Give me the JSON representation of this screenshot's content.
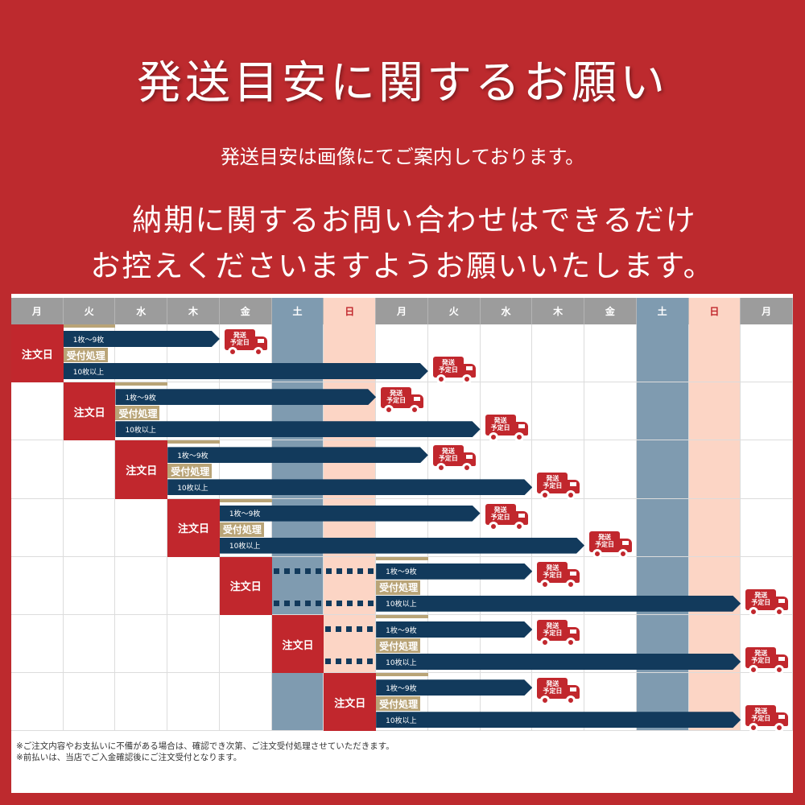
{
  "title": "発送目安に関するお願い",
  "subtitle": "発送目安は画像にてご案内しております。",
  "request_line1": "納期に関するお問い合わせはできるだけ",
  "request_line2": "お控えくださいますようお願いいたします。",
  "schedule": {
    "days": [
      "月",
      "火",
      "水",
      "木",
      "金",
      "土",
      "日",
      "月",
      "火",
      "水",
      "木",
      "金",
      "土",
      "日",
      "月"
    ],
    "weekend_colors": {
      "土": "#7f9bb0",
      "日": "#fcd5c5"
    },
    "colors": {
      "order": "#c1272d",
      "bar": "#123a5c",
      "processing": "#b9a477",
      "header": "#9c9c9c",
      "background": "#bd2a2e"
    },
    "order_label": "注文日",
    "processing_label": "受付処理",
    "small_label": "1枚～9枚",
    "large_label": "10枚以上",
    "truck_label": "発送\n予定日",
    "rows": [
      {
        "order_day": "月",
        "processing_start": "火",
        "ship_small": "金",
        "ship_large": "火"
      },
      {
        "order_day": "火",
        "processing_start": "水",
        "ship_small": "月",
        "ship_large": "水"
      },
      {
        "order_day": "水",
        "processing_start": "木",
        "ship_small": "火",
        "ship_large": "木"
      },
      {
        "order_day": "木",
        "processing_start": "金",
        "ship_small": "水",
        "ship_large": "金"
      },
      {
        "order_day": "金",
        "processing_start": "月",
        "ship_small": "木",
        "ship_large": "月"
      },
      {
        "order_day": "土",
        "processing_start": "月",
        "ship_small": "木",
        "ship_large": "月"
      },
      {
        "order_day": "日",
        "processing_start": "月",
        "ship_small": "木",
        "ship_large": "月"
      }
    ]
  },
  "notes": [
    "※ご注文内容やお支払いに不備がある場合は、確認でき次第、ご注文受付処理させていただきます。",
    "※前払いは、当店でご入金確認後にご注文受付となります。"
  ]
}
